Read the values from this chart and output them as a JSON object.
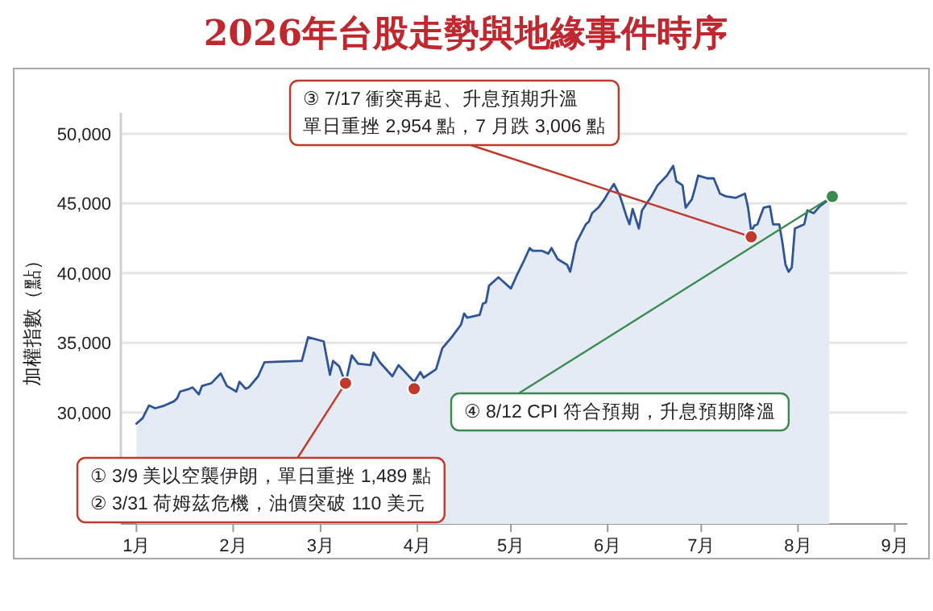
{
  "chart_data": {
    "type": "area",
    "title": "2026年台股走勢與地緣事件時序",
    "ylabel": "加權指數（點）",
    "xlim": [
      "2025-12-27",
      "2026-09-05"
    ],
    "xticks": [
      {
        "value": "2026-01-01",
        "label": "1月"
      },
      {
        "value": "2026-02-01",
        "label": "2月"
      },
      {
        "value": "2026-03-01",
        "label": "3月"
      },
      {
        "value": "2026-04-01",
        "label": "4月"
      },
      {
        "value": "2026-05-01",
        "label": "5月"
      },
      {
        "value": "2026-06-01",
        "label": "6月"
      },
      {
        "value": "2026-07-01",
        "label": "7月"
      },
      {
        "value": "2026-08-01",
        "label": "8月"
      },
      {
        "value": "2026-09-01",
        "label": "9月"
      }
    ],
    "ylim": [
      22000,
      51500
    ],
    "yticks": [
      {
        "value": 30000,
        "label": "30,000"
      },
      {
        "value": 35000,
        "label": "35,000"
      },
      {
        "value": 40000,
        "label": "40,000"
      },
      {
        "value": 45000,
        "label": "45,000"
      },
      {
        "value": 50000,
        "label": "50,000"
      }
    ],
    "grid": "y",
    "series": [
      {
        "color": "#2e5597",
        "x": [
          "2026-01-01",
          "2026-01-03",
          "2026-01-05",
          "2026-01-07",
          "2026-01-10",
          "2026-01-13",
          "2026-01-14",
          "2026-01-15",
          "2026-01-18",
          "2026-01-19",
          "2026-01-21",
          "2026-01-22",
          "2026-01-25",
          "2026-01-28",
          "2026-01-30",
          "2026-02-02",
          "2026-02-03",
          "2026-02-05",
          "2026-02-06",
          "2026-02-09",
          "2026-02-11",
          "2026-02-23",
          "2026-02-25",
          "2026-03-02",
          "2026-03-04",
          "2026-03-05",
          "2026-03-07",
          "2026-03-09",
          "2026-03-11",
          "2026-03-13",
          "2026-03-17",
          "2026-03-18",
          "2026-03-20",
          "2026-03-24",
          "2026-03-26",
          "2026-03-31",
          "2026-04-02",
          "2026-04-03",
          "2026-04-07",
          "2026-04-09",
          "2026-04-12",
          "2026-04-15",
          "2026-04-16",
          "2026-04-17",
          "2026-04-21",
          "2026-04-22",
          "2026-04-23",
          "2026-04-24",
          "2026-04-27",
          "2026-04-29",
          "2026-05-01",
          "2026-05-03",
          "2026-05-05",
          "2026-05-07",
          "2026-05-08",
          "2026-05-11",
          "2026-05-13",
          "2026-05-14",
          "2026-05-16",
          "2026-05-19",
          "2026-05-20",
          "2026-05-22",
          "2026-05-25",
          "2026-05-26",
          "2026-05-27",
          "2026-05-29",
          "2026-05-31",
          "2026-06-01",
          "2026-06-03",
          "2026-06-05",
          "2026-06-07",
          "2026-06-08",
          "2026-06-09",
          "2026-06-11",
          "2026-06-12",
          "2026-06-15",
          "2026-06-17",
          "2026-06-20",
          "2026-06-22",
          "2026-06-23",
          "2026-06-25",
          "2026-06-26",
          "2026-06-28",
          "2026-06-29",
          "2026-06-30",
          "2026-07-03",
          "2026-07-05",
          "2026-07-07",
          "2026-07-09",
          "2026-07-12",
          "2026-07-14",
          "2026-07-15",
          "2026-07-16",
          "2026-07-17",
          "2026-07-18",
          "2026-07-19",
          "2026-07-21",
          "2026-07-23",
          "2026-07-24",
          "2026-07-26",
          "2026-07-27",
          "2026-07-28",
          "2026-07-29",
          "2026-07-30",
          "2026-07-31",
          "2026-08-01",
          "2026-08-03",
          "2026-08-04",
          "2026-08-06",
          "2026-08-08",
          "2026-08-11"
        ],
        "values": [
          29200,
          29600,
          30500,
          30300,
          30500,
          30800,
          31000,
          31500,
          31700,
          31800,
          31300,
          31900,
          32100,
          32800,
          31900,
          31500,
          32200,
          31700,
          31800,
          32600,
          33600,
          33700,
          35400,
          35100,
          32700,
          33700,
          33300,
          32100,
          34100,
          33500,
          33400,
          34300,
          33600,
          32600,
          33400,
          32200,
          32900,
          32500,
          33100,
          34600,
          35400,
          36300,
          37100,
          36800,
          37000,
          37800,
          37900,
          39100,
          39700,
          39300,
          38900,
          39900,
          40800,
          41800,
          41600,
          41600,
          41400,
          41800,
          41000,
          40600,
          40100,
          42200,
          43500,
          43700,
          44300,
          44700,
          45300,
          45700,
          46400,
          45500,
          44100,
          43500,
          44600,
          43200,
          44500,
          45500,
          46300,
          47000,
          47700,
          46600,
          46300,
          44700,
          45300,
          46100,
          47000,
          46800,
          46800,
          45700,
          45500,
          45400,
          45600,
          45700,
          44700,
          43000,
          43400,
          43500,
          44700,
          44800,
          43500,
          43500,
          42200,
          40600,
          40100,
          40400,
          43200,
          43300,
          43500,
          44500,
          44300,
          44800,
          45300
        ]
      },
      {
        "type": "scatter",
        "marker": "circle",
        "colors": [
          "#c0392b",
          "#c0392b",
          "#c0392b",
          "#3a8a4f"
        ],
        "x": [
          "2026-03-09",
          "2026-03-31",
          "2026-07-17",
          "2026-08-12"
        ],
        "values": [
          32100,
          31700,
          42600,
          45500
        ]
      }
    ],
    "annotations": [
      {
        "text": "① 3/9 美以空襲伊朗，單日重挫 1,489 點",
        "x": "2026-03-09",
        "y": 32100
      },
      "② 3/31 荷姆茲危機，油價突破 110 美元",
      "③ 7/17 衝突再起、升息預期升溫",
      {
        "text": "單日重挫 2,954 點，7 月跌 3,006 點",
        "x": "2026-07-17",
        "y": 42600
      },
      {
        "text": "④ 8/12 CPI 符合預期，升息預期降溫",
        "x": "2026-08-12",
        "y": 45500
      }
    ]
  }
}
